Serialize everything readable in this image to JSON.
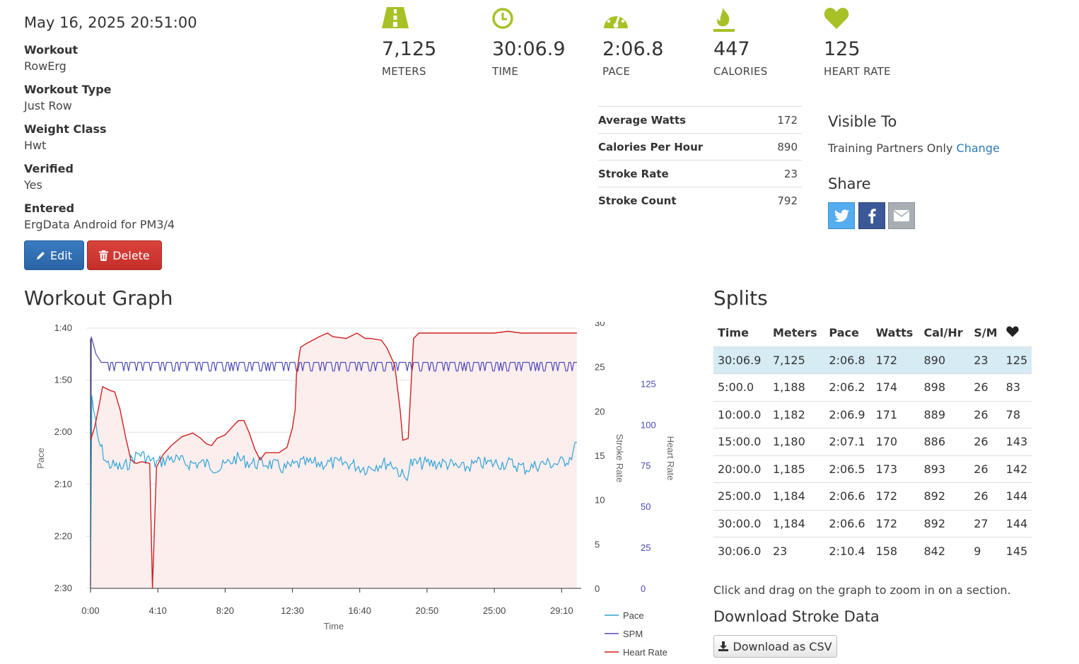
{
  "workout": {
    "date": "May 16, 2025 20:51:00",
    "details": [
      {
        "label": "Workout",
        "value": "RowErg"
      },
      {
        "label": "Workout Type",
        "value": "Just Row"
      },
      {
        "label": "Weight Class",
        "value": "Hwt"
      },
      {
        "label": "Verified",
        "value": "Yes"
      },
      {
        "label": "Entered",
        "value": "ErgData Android for PM3/4"
      }
    ],
    "edit_label": "Edit",
    "delete_label": "Delete"
  },
  "stats": [
    {
      "icon": "road-icon",
      "value": "7,125",
      "label": "METERS"
    },
    {
      "icon": "clock-icon",
      "value": "30:06.9",
      "label": "TIME"
    },
    {
      "icon": "speedometer-icon",
      "value": "2:06.8",
      "label": "PACE"
    },
    {
      "icon": "flame-icon",
      "value": "447",
      "label": "CALORIES"
    },
    {
      "icon": "heart-icon",
      "value": "125",
      "label": "HEART RATE"
    }
  ],
  "colors": {
    "icon_green": "#a7c126",
    "pace": "#2ea4d8",
    "spm": "#4a4ab8",
    "hr": "#d11f1f"
  },
  "summary": [
    {
      "label": "Average Watts",
      "value": "172"
    },
    {
      "label": "Calories Per Hour",
      "value": "890"
    },
    {
      "label": "Stroke Rate",
      "value": "23"
    },
    {
      "label": "Stroke Count",
      "value": "792"
    }
  ],
  "visibility": {
    "heading": "Visible To",
    "text": "Training Partners Only",
    "change_link": "Change"
  },
  "share": {
    "heading": "Share",
    "buttons": [
      "twitter-icon",
      "facebook-icon",
      "envelope-icon"
    ]
  },
  "graph": {
    "heading": "Workout Graph"
  },
  "chart_data": {
    "type": "line",
    "title": "",
    "xlabel": "Time",
    "x_ticks": [
      "0:00",
      "4:10",
      "8:20",
      "12:30",
      "16:40",
      "20:50",
      "25:00",
      "29:10"
    ],
    "x_range_seconds": [
      0,
      1807
    ],
    "axes": {
      "pace": {
        "label": "Pace",
        "ticks": [
          "1:40",
          "1:50",
          "2:00",
          "2:10",
          "2:20",
          "2:30"
        ],
        "range_seconds": [
          100,
          150
        ],
        "inverted": true
      },
      "stroke_rate": {
        "label": "Stroke Rate",
        "ticks": [
          "30",
          "25",
          "20",
          "15",
          "10",
          "5",
          "0"
        ],
        "range": [
          0,
          30
        ]
      },
      "heart_rate": {
        "label": "Heart Rate",
        "ticks": [
          "125",
          "100",
          "75",
          "50",
          "25",
          "0"
        ],
        "range": [
          0,
          145
        ]
      }
    },
    "legend": [
      "Pace",
      "SPM",
      "Heart Rate"
    ],
    "legend_position": "bottom-right",
    "series": [
      {
        "name": "Pace",
        "unit": "sec/500m",
        "points": [
          [
            0,
            150
          ],
          [
            5,
            113
          ],
          [
            25,
            121
          ],
          [
            60,
            126
          ],
          [
            120,
            127
          ],
          [
            180,
            124
          ],
          [
            240,
            126
          ],
          [
            300,
            125
          ],
          [
            360,
            126
          ],
          [
            420,
            126
          ],
          [
            480,
            127
          ],
          [
            540,
            125
          ],
          [
            600,
            126
          ],
          [
            660,
            126
          ],
          [
            720,
            127
          ],
          [
            780,
            126
          ],
          [
            840,
            126
          ],
          [
            900,
            126
          ],
          [
            960,
            126
          ],
          [
            1020,
            127
          ],
          [
            1080,
            126
          ],
          [
            1120,
            126
          ],
          [
            1170,
            129
          ],
          [
            1190,
            126
          ],
          [
            1260,
            126
          ],
          [
            1320,
            126
          ],
          [
            1380,
            127
          ],
          [
            1440,
            126
          ],
          [
            1500,
            126
          ],
          [
            1560,
            126
          ],
          [
            1620,
            127
          ],
          [
            1680,
            126
          ],
          [
            1740,
            126
          ],
          [
            1780,
            125
          ],
          [
            1800,
            123
          ],
          [
            1807,
            122
          ]
        ]
      },
      {
        "name": "SPM",
        "unit": "spm",
        "points": [
          [
            0,
            0
          ],
          [
            3,
            29
          ],
          [
            20,
            27
          ],
          [
            40,
            26
          ],
          [
            100,
            26
          ],
          [
            200,
            25
          ],
          [
            300,
            25
          ],
          [
            400,
            25
          ],
          [
            500,
            25
          ],
          [
            600,
            25
          ],
          [
            700,
            26
          ],
          [
            800,
            25
          ],
          [
            900,
            25
          ],
          [
            1000,
            25
          ],
          [
            1100,
            25
          ],
          [
            1200,
            25
          ],
          [
            1300,
            25
          ],
          [
            1400,
            25
          ],
          [
            1500,
            25
          ],
          [
            1600,
            26
          ],
          [
            1700,
            26
          ],
          [
            1807,
            26
          ]
        ]
      },
      {
        "name": "Heart Rate",
        "unit": "bpm",
        "points": [
          [
            0,
            83
          ],
          [
            15,
            90
          ],
          [
            30,
            101
          ],
          [
            45,
            113
          ],
          [
            70,
            111
          ],
          [
            90,
            110
          ],
          [
            110,
            100
          ],
          [
            130,
            85
          ],
          [
            150,
            72
          ],
          [
            170,
            70
          ],
          [
            190,
            71
          ],
          [
            220,
            70
          ],
          [
            230,
            0
          ],
          [
            245,
            68
          ],
          [
            270,
            75
          ],
          [
            300,
            80
          ],
          [
            340,
            85
          ],
          [
            380,
            87
          ],
          [
            410,
            84
          ],
          [
            430,
            81
          ],
          [
            450,
            80
          ],
          [
            470,
            84
          ],
          [
            500,
            86
          ],
          [
            530,
            91
          ],
          [
            550,
            94
          ],
          [
            570,
            94
          ],
          [
            590,
            87
          ],
          [
            610,
            78
          ],
          [
            630,
            72
          ],
          [
            650,
            76
          ],
          [
            680,
            76
          ],
          [
            700,
            76
          ],
          [
            730,
            79
          ],
          [
            750,
            90
          ],
          [
            760,
            100
          ],
          [
            765,
            120
          ],
          [
            780,
            135
          ],
          [
            800,
            137
          ],
          [
            850,
            141
          ],
          [
            880,
            143
          ],
          [
            900,
            141
          ],
          [
            950,
            140
          ],
          [
            990,
            143
          ],
          [
            1020,
            140
          ],
          [
            1040,
            140
          ],
          [
            1080,
            139
          ],
          [
            1100,
            135
          ],
          [
            1130,
            125
          ],
          [
            1150,
            100
          ],
          [
            1160,
            83
          ],
          [
            1180,
            84
          ],
          [
            1200,
            140
          ],
          [
            1220,
            143
          ],
          [
            1300,
            143
          ],
          [
            1400,
            143
          ],
          [
            1500,
            143
          ],
          [
            1550,
            144
          ],
          [
            1600,
            143
          ],
          [
            1700,
            143
          ],
          [
            1750,
            143
          ],
          [
            1807,
            143
          ]
        ]
      }
    ]
  },
  "splits": {
    "heading": "Splits",
    "columns": [
      "Time",
      "Meters",
      "Pace",
      "Watts",
      "Cal/Hr",
      "S/M"
    ],
    "hr_column_icon": "heart-icon",
    "rows": [
      [
        "30:06.9",
        "7,125",
        "2:06.8",
        "172",
        "890",
        "23",
        "125"
      ],
      [
        "5:00.0",
        "1,188",
        "2:06.2",
        "174",
        "898",
        "26",
        "83"
      ],
      [
        "10:00.0",
        "1,182",
        "2:06.9",
        "171",
        "889",
        "26",
        "78"
      ],
      [
        "15:00.0",
        "1,180",
        "2:07.1",
        "170",
        "886",
        "26",
        "143"
      ],
      [
        "20:00.0",
        "1,185",
        "2:06.5",
        "173",
        "893",
        "26",
        "142"
      ],
      [
        "25:00.0",
        "1,184",
        "2:06.6",
        "172",
        "892",
        "26",
        "144"
      ],
      [
        "30:00.0",
        "1,184",
        "2:06.6",
        "172",
        "892",
        "27",
        "144"
      ],
      [
        "30:06.0",
        "23",
        "2:10.4",
        "158",
        "842",
        "9",
        "145"
      ]
    ]
  },
  "zoom_note": "Click and drag on the graph to zoom in on a section.",
  "download": {
    "heading": "Download Stroke Data",
    "button": "Download as CSV"
  }
}
